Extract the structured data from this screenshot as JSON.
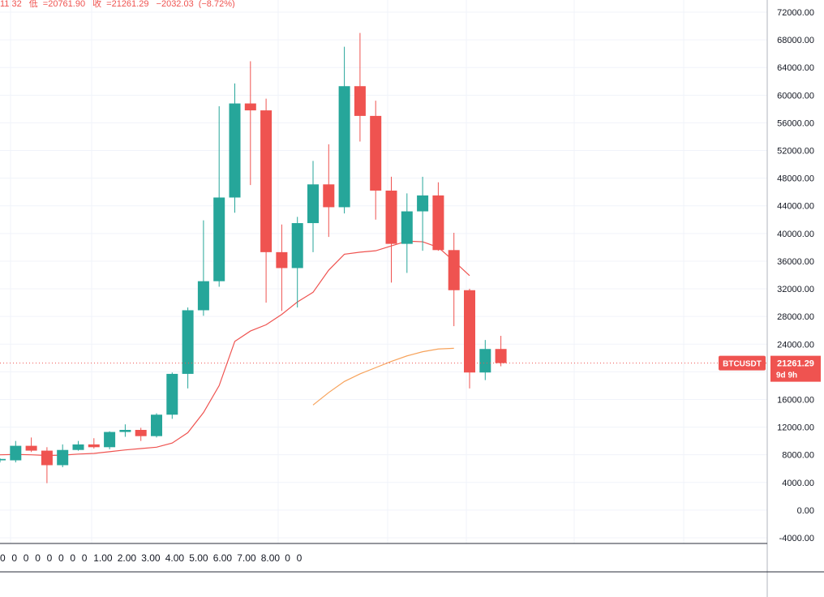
{
  "ohlc_header": {
    "high_fragment": "11.32",
    "low_label": "低",
    "low_value": "=20761.90",
    "close_label": "收",
    "close_value": "=21261.29",
    "change": "−2032.03",
    "change_pct": "(−8.72%)"
  },
  "price_tag": {
    "symbol": "BTCUSDT",
    "price": "21261.29",
    "countdown": "9d 9h"
  },
  "colors": {
    "up": "#26a69a",
    "down": "#ef5350",
    "ma_red": "#ef5350",
    "ma_orange": "#f7a35c",
    "grid": "#f0f3fa",
    "axis_text": "#131722",
    "price_line": "#ef5350"
  },
  "indicator_row": {
    "labels": [
      "0",
      "0",
      "0",
      "0",
      "0",
      "0",
      "0",
      "0",
      "1.00",
      "2.00",
      "3.00",
      "4.00",
      "5.00",
      "6.00",
      "7.00",
      "8.00",
      "0",
      "0"
    ]
  },
  "chart_data": {
    "type": "candlestick",
    "title": "",
    "xlabel": "",
    "ylabel": "",
    "ylim": [
      -4000,
      72000
    ],
    "y_ticks": [
      "72000.00",
      "68000.00",
      "64000.00",
      "60000.00",
      "56000.00",
      "52000.00",
      "48000.00",
      "44000.00",
      "40000.00",
      "36000.00",
      "32000.00",
      "28000.00",
      "24000.00",
      "20000.00",
      "16000.00",
      "12000.00",
      "8000.00",
      "4000.00",
      "0.00",
      "-4000.00"
    ],
    "y_tick_values": [
      72000,
      68000,
      64000,
      60000,
      56000,
      52000,
      48000,
      44000,
      40000,
      36000,
      32000,
      28000,
      24000,
      20000,
      16000,
      12000,
      8000,
      4000,
      0,
      -4000
    ],
    "grid": true,
    "candles": [
      {
        "o": 7200,
        "h": 7500,
        "l": 6900,
        "c": 7400
      },
      {
        "o": 7200,
        "h": 10000,
        "l": 6900,
        "c": 9300
      },
      {
        "o": 9300,
        "h": 10500,
        "l": 8400,
        "c": 8600
      },
      {
        "o": 8600,
        "h": 9100,
        "l": 3900,
        "c": 6500
      },
      {
        "o": 6500,
        "h": 9500,
        "l": 6200,
        "c": 8700
      },
      {
        "o": 8700,
        "h": 10000,
        "l": 8600,
        "c": 9500
      },
      {
        "o": 9500,
        "h": 10400,
        "l": 8900,
        "c": 9100
      },
      {
        "o": 9100,
        "h": 11400,
        "l": 8800,
        "c": 11300
      },
      {
        "o": 11300,
        "h": 12400,
        "l": 10600,
        "c": 11600
      },
      {
        "o": 11600,
        "h": 11900,
        "l": 10000,
        "c": 10700
      },
      {
        "o": 10700,
        "h": 14000,
        "l": 10500,
        "c": 13800
      },
      {
        "o": 13800,
        "h": 19900,
        "l": 13200,
        "c": 19700
      },
      {
        "o": 19700,
        "h": 29300,
        "l": 17600,
        "c": 28900
      },
      {
        "o": 28900,
        "h": 41900,
        "l": 28100,
        "c": 33100
      },
      {
        "o": 33100,
        "h": 58400,
        "l": 32300,
        "c": 45200
      },
      {
        "o": 45200,
        "h": 61700,
        "l": 43000,
        "c": 58800
      },
      {
        "o": 58800,
        "h": 64900,
        "l": 47000,
        "c": 57800
      },
      {
        "o": 57800,
        "h": 59500,
        "l": 30000,
        "c": 37300
      },
      {
        "o": 37300,
        "h": 41300,
        "l": 28800,
        "c": 35000
      },
      {
        "o": 35000,
        "h": 42400,
        "l": 29300,
        "c": 41500
      },
      {
        "o": 41500,
        "h": 50500,
        "l": 37300,
        "c": 47100
      },
      {
        "o": 47100,
        "h": 52900,
        "l": 39500,
        "c": 43800
      },
      {
        "o": 43800,
        "h": 67000,
        "l": 42900,
        "c": 61300
      },
      {
        "o": 61300,
        "h": 69000,
        "l": 53300,
        "c": 57000
      },
      {
        "o": 57000,
        "h": 59200,
        "l": 42000,
        "c": 46200
      },
      {
        "o": 46200,
        "h": 48200,
        "l": 32900,
        "c": 38500
      },
      {
        "o": 38500,
        "h": 45800,
        "l": 34300,
        "c": 43200
      },
      {
        "o": 43200,
        "h": 48200,
        "l": 37500,
        "c": 45500
      },
      {
        "o": 45500,
        "h": 47400,
        "l": 37500,
        "c": 37600
      },
      {
        "o": 37600,
        "h": 40100,
        "l": 26600,
        "c": 31800
      },
      {
        "o": 31800,
        "h": 32000,
        "l": 17600,
        "c": 19900
      },
      {
        "o": 19900,
        "h": 24600,
        "l": 18800,
        "c": 23300
      },
      {
        "o": 23300,
        "h": 25200,
        "l": 20800,
        "c": 21261.29
      }
    ],
    "ma_red": [
      {
        "i": 0,
        "v": 8000
      },
      {
        "i": 1,
        "v": 8050
      },
      {
        "i": 2,
        "v": 8000
      },
      {
        "i": 3,
        "v": 7900
      },
      {
        "i": 4,
        "v": 7950
      },
      {
        "i": 5,
        "v": 8100
      },
      {
        "i": 6,
        "v": 8200
      },
      {
        "i": 7,
        "v": 8450
      },
      {
        "i": 8,
        "v": 8700
      },
      {
        "i": 9,
        "v": 8900
      },
      {
        "i": 10,
        "v": 9100
      },
      {
        "i": 11,
        "v": 9700
      },
      {
        "i": 12,
        "v": 11200
      },
      {
        "i": 13,
        "v": 14100
      },
      {
        "i": 14,
        "v": 18000
      },
      {
        "i": 15,
        "v": 24400
      },
      {
        "i": 16,
        "v": 25900
      },
      {
        "i": 17,
        "v": 26800
      },
      {
        "i": 18,
        "v": 28300
      },
      {
        "i": 19,
        "v": 30100
      },
      {
        "i": 20,
        "v": 31500
      },
      {
        "i": 21,
        "v": 34700
      },
      {
        "i": 22,
        "v": 37000
      },
      {
        "i": 23,
        "v": 37300
      },
      {
        "i": 24,
        "v": 37500
      },
      {
        "i": 25,
        "v": 38200
      },
      {
        "i": 26,
        "v": 38900
      },
      {
        "i": 27,
        "v": 38800
      },
      {
        "i": 28,
        "v": 38000
      },
      {
        "i": 29,
        "v": 36000
      },
      {
        "i": 30,
        "v": 33900
      }
    ],
    "ma_orange": [
      {
        "i": 20,
        "v": 15200
      },
      {
        "i": 21,
        "v": 17000
      },
      {
        "i": 22,
        "v": 18600
      },
      {
        "i": 23,
        "v": 19700
      },
      {
        "i": 24,
        "v": 20600
      },
      {
        "i": 25,
        "v": 21500
      },
      {
        "i": 26,
        "v": 22300
      },
      {
        "i": 27,
        "v": 22900
      },
      {
        "i": 28,
        "v": 23300
      },
      {
        "i": 29,
        "v": 23400
      }
    ]
  }
}
